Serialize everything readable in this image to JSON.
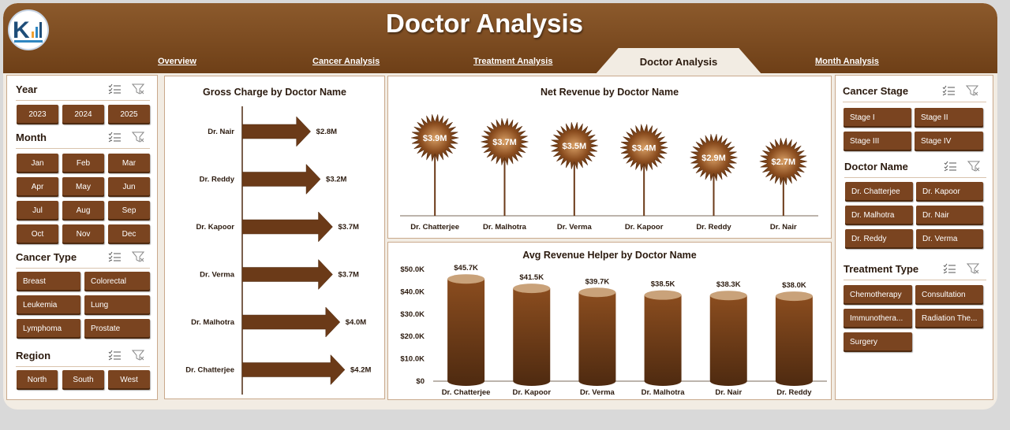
{
  "header": {
    "title": "Doctor Analysis",
    "tabs": [
      "Overview",
      "Cancer Analysis",
      "Treatment Analysis",
      "Doctor Analysis",
      "Month Analysis"
    ],
    "active_tab": "Doctor Analysis"
  },
  "left_slicers": {
    "year": {
      "title": "Year",
      "items": [
        "2023",
        "2024",
        "2025"
      ]
    },
    "month": {
      "title": "Month",
      "items": [
        "Jan",
        "Feb",
        "Mar",
        "Apr",
        "May",
        "Jun",
        "Jul",
        "Aug",
        "Sep",
        "Oct",
        "Nov",
        "Dec"
      ]
    },
    "cancer_type": {
      "title": "Cancer Type",
      "items": [
        "Breast",
        "Colorectal",
        "Leukemia",
        "Lung",
        "Lymphoma",
        "Prostate"
      ]
    },
    "region": {
      "title": "Region",
      "items": [
        "North",
        "South",
        "West"
      ]
    }
  },
  "right_slicers": {
    "cancer_stage": {
      "title": "Cancer Stage",
      "items": [
        "Stage I",
        "Stage II",
        "Stage III",
        "Stage IV"
      ]
    },
    "doctor_name": {
      "title": "Doctor Name",
      "items": [
        "Dr. Chatterjee",
        "Dr. Kapoor",
        "Dr. Malhotra",
        "Dr. Nair",
        "Dr. Reddy",
        "Dr. Verma"
      ]
    },
    "treatment_type": {
      "title": "Treatment Type",
      "items": [
        "Chemotherapy",
        "Consultation",
        "Immunothera...",
        "Radiation The...",
        "Surgery"
      ]
    }
  },
  "colors": {
    "brown": "#7a4420",
    "dark_brown": "#4e2a10",
    "header": "#7a4a20",
    "background": "#f2ece3"
  },
  "chart_data": [
    {
      "type": "bar",
      "orientation": "horizontal",
      "title": "Gross Charge by Doctor Name",
      "categories": [
        "Dr. Nair",
        "Dr. Reddy",
        "Dr. Kapoor",
        "Dr. Verma",
        "Dr. Malhotra",
        "Dr. Chatterjee"
      ],
      "values": [
        2.8,
        3.2,
        3.7,
        3.7,
        4.0,
        4.2
      ],
      "labels": [
        "$2.8M",
        "$3.2M",
        "$3.7M",
        "$3.7M",
        "$4.0M",
        "$4.2M"
      ],
      "unit": "M"
    },
    {
      "type": "scatter",
      "style": "lollipop",
      "title": "Net Revenue by Doctor Name",
      "categories": [
        "Dr. Chatterjee",
        "Dr. Malhotra",
        "Dr. Verma",
        "Dr. Kapoor",
        "Dr. Reddy",
        "Dr. Nair"
      ],
      "values": [
        3.9,
        3.7,
        3.5,
        3.4,
        2.9,
        2.7
      ],
      "labels": [
        "$3.9M",
        "$3.7M",
        "$3.5M",
        "$3.4M",
        "$2.9M",
        "$2.7M"
      ]
    },
    {
      "type": "bar",
      "style": "cylinder",
      "title": "Avg Revenue Helper by Doctor Name",
      "categories": [
        "Dr. Chatterjee",
        "Dr. Kapoor",
        "Dr. Verma",
        "Dr. Malhotra",
        "Dr. Nair",
        "Dr. Reddy"
      ],
      "values": [
        45.7,
        41.5,
        39.7,
        38.5,
        38.3,
        38.0
      ],
      "labels": [
        "$45.7K",
        "$41.5K",
        "$39.7K",
        "$38.5K",
        "$38.3K",
        "$38.0K"
      ],
      "yticks": [
        "$0",
        "$10.0K",
        "$20.0K",
        "$30.0K",
        "$40.0K",
        "$50.0K"
      ],
      "ylim": [
        0,
        50
      ]
    }
  ]
}
